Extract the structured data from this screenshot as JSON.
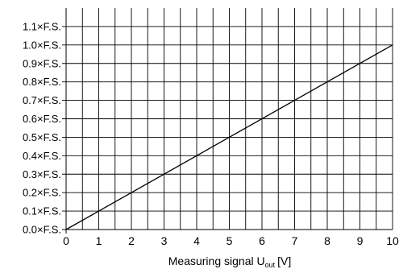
{
  "chart_data": {
    "type": "line",
    "title": "",
    "xlabel": {
      "main": "Measuring signal U",
      "subscript": "out",
      "unit": "[V]"
    },
    "ylabel": "",
    "xlim": [
      0,
      10
    ],
    "ylim": [
      0,
      1.1
    ],
    "x_ticks": [
      "0",
      "1",
      "2",
      "3",
      "4",
      "5",
      "6",
      "7",
      "8",
      "9",
      "10"
    ],
    "y_ticks": [
      "0.0×F.S.",
      "0.1×F.S.",
      "0.2×F.S.",
      "0.3×F.S.",
      "0.4×F.S.",
      "0.5×F.S.",
      "0.6×F.S.",
      "0.7×F.S.",
      "0.8×F.S.",
      "0.9×F.S.",
      "1.0×F.S.",
      "1.1×F.S."
    ],
    "grid": true,
    "series": [
      {
        "x": [
          0,
          10
        ],
        "y": [
          0.0,
          1.0
        ],
        "color": "#000000"
      }
    ]
  }
}
